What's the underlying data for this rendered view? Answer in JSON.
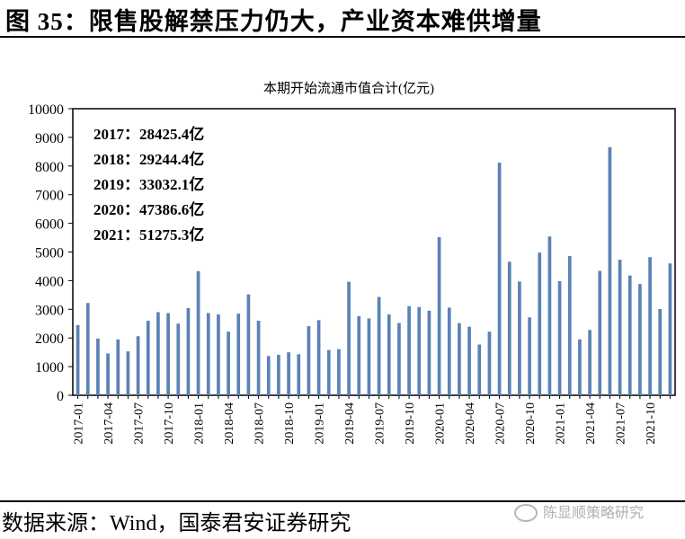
{
  "figure": {
    "title": "图 35：限售股解禁压力仍大，产业资本难供增量",
    "source": "数据来源：Wind，国泰君安证券研究",
    "watermark": "陈显顺策略研究"
  },
  "colors": {
    "bar": "#5b82b6",
    "axis": "#000000"
  },
  "chart_data": {
    "type": "bar",
    "title": "本期开始流通市值合计(亿元)",
    "xlabel": "",
    "ylabel": "",
    "ylim": [
      0,
      10000
    ],
    "yticks": [
      0,
      1000,
      2000,
      3000,
      4000,
      5000,
      6000,
      7000,
      8000,
      9000,
      10000
    ],
    "grid": false,
    "categories": [
      "2017-01",
      "2017-02",
      "2017-03",
      "2017-04",
      "2017-05",
      "2017-06",
      "2017-07",
      "2017-08",
      "2017-09",
      "2017-10",
      "2017-11",
      "2017-12",
      "2018-01",
      "2018-02",
      "2018-03",
      "2018-04",
      "2018-05",
      "2018-06",
      "2018-07",
      "2018-08",
      "2018-09",
      "2018-10",
      "2018-11",
      "2018-12",
      "2019-01",
      "2019-02",
      "2019-03",
      "2019-04",
      "2019-05",
      "2019-06",
      "2019-07",
      "2019-08",
      "2019-09",
      "2019-10",
      "2019-11",
      "2019-12",
      "2020-01",
      "2020-02",
      "2020-03",
      "2020-04",
      "2020-05",
      "2020-06",
      "2020-07",
      "2020-08",
      "2020-09",
      "2020-10",
      "2020-11",
      "2020-12",
      "2021-01",
      "2021-02",
      "2021-03",
      "2021-04",
      "2021-05",
      "2021-06",
      "2021-07",
      "2021-08",
      "2021-09",
      "2021-10",
      "2021-11",
      "2021-12"
    ],
    "tick_labels": [
      "2017-01",
      "2017-04",
      "2017-07",
      "2017-10",
      "2018-01",
      "2018-04",
      "2018-07",
      "2018-10",
      "2019-01",
      "2019-04",
      "2019-07",
      "2019-10",
      "2020-01",
      "2020-04",
      "2020-07",
      "2020-10",
      "2021-01",
      "2021-04",
      "2021-07",
      "2021-10"
    ],
    "values": [
      2450,
      3220,
      1980,
      1460,
      1950,
      1530,
      2060,
      2600,
      2900,
      2870,
      2500,
      3040,
      4330,
      2870,
      2820,
      2220,
      2850,
      3520,
      2600,
      1370,
      1410,
      1500,
      1430,
      2410,
      2620,
      1580,
      1610,
      3960,
      2760,
      2680,
      3430,
      2820,
      2520,
      3110,
      3080,
      2950,
      5520,
      3060,
      2520,
      2390,
      1770,
      2220,
      8120,
      4660,
      3970,
      2720,
      4980,
      5540,
      3980,
      4860,
      1950,
      2280,
      4340,
      8660,
      4730,
      4180,
      3880,
      4820,
      3010,
      4600
    ],
    "annotations": [
      "2017：28425.4亿",
      "2018：29244.4亿",
      "2019：33032.1亿",
      "2020：47386.6亿",
      "2021：51275.3亿"
    ]
  }
}
